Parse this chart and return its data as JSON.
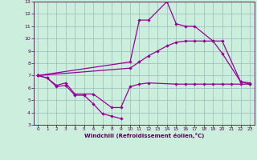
{
  "series": {
    "s1_x": [
      0,
      1,
      2,
      3,
      4,
      5,
      6,
      7,
      8,
      9
    ],
    "s1_y": [
      7.0,
      6.8,
      6.1,
      6.2,
      5.4,
      5.4,
      4.7,
      3.9,
      3.7,
      3.5
    ],
    "s2_x": [
      0,
      1,
      2,
      3,
      4,
      5,
      6,
      8,
      9,
      10,
      11,
      12,
      15,
      16,
      17,
      18,
      19,
      20,
      21,
      22,
      23
    ],
    "s2_y": [
      7.0,
      6.8,
      6.2,
      6.4,
      5.5,
      5.5,
      5.5,
      4.4,
      4.4,
      6.1,
      6.3,
      6.4,
      6.3,
      6.3,
      6.3,
      6.3,
      6.3,
      6.3,
      6.3,
      6.3,
      6.3
    ],
    "s3_x": [
      0,
      10,
      11,
      12,
      14,
      15,
      16,
      17,
      19,
      20,
      22,
      23
    ],
    "s3_y": [
      7.0,
      8.1,
      11.5,
      11.5,
      13.0,
      11.2,
      11.0,
      11.0,
      9.8,
      8.8,
      6.5,
      6.3
    ],
    "s4_x": [
      0,
      10,
      11,
      12,
      13,
      14,
      15,
      16,
      17,
      18,
      19,
      20,
      22,
      23
    ],
    "s4_y": [
      7.0,
      7.6,
      8.1,
      8.6,
      9.0,
      9.4,
      9.7,
      9.8,
      9.8,
      9.8,
      9.8,
      9.8,
      6.5,
      6.4
    ]
  },
  "color": "#990099",
  "bg_color": "#cceedd",
  "grid_color": "#99bbbb",
  "ylim": [
    3,
    13
  ],
  "xlim": [
    -0.5,
    23.5
  ],
  "xlabel": "Windchill (Refroidissement éolien,°C)",
  "yticks": [
    3,
    4,
    5,
    6,
    7,
    8,
    9,
    10,
    11,
    12,
    13
  ],
  "xticks": [
    0,
    1,
    2,
    3,
    4,
    5,
    6,
    7,
    8,
    9,
    10,
    11,
    12,
    13,
    14,
    15,
    16,
    17,
    18,
    19,
    20,
    21,
    22,
    23
  ]
}
